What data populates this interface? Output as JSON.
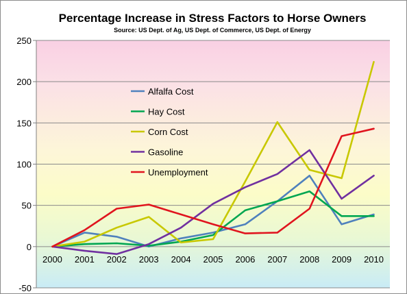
{
  "chart_data": {
    "type": "line",
    "title": "Percentage Increase in Stress Factors to Horse Owners",
    "subtitle": "Source: US Dept. of Ag, US Dept. of Commerce, US Dept. of Energy",
    "xlabel": "",
    "ylabel": "",
    "categories": [
      "2000",
      "2001",
      "2002",
      "2003",
      "2004",
      "2005",
      "2006",
      "2007",
      "2008",
      "2009",
      "2010"
    ],
    "ylim": [
      -50,
      250
    ],
    "yticks": [
      -50,
      0,
      50,
      100,
      150,
      200,
      250
    ],
    "grid": true,
    "legend_position": "top-left inside plot",
    "series": [
      {
        "name": "Alfalfa Cost",
        "color": "#4f81bd",
        "values": [
          0,
          17,
          12,
          0,
          10,
          17,
          27,
          55,
          86,
          27,
          39
        ]
      },
      {
        "name": "Hay Cost",
        "color": "#00a651",
        "values": [
          0,
          3,
          4,
          1,
          6,
          14,
          44,
          55,
          67,
          37,
          37
        ]
      },
      {
        "name": "Corn Cost",
        "color": "#c8c800",
        "values": [
          0,
          6,
          23,
          36,
          5,
          9,
          79,
          151,
          93,
          83,
          224
        ]
      },
      {
        "name": "Gasoline",
        "color": "#7030a0",
        "values": [
          0,
          -5,
          -9,
          3,
          23,
          52,
          72,
          88,
          117,
          58,
          86
        ]
      },
      {
        "name": "Unemployment",
        "color": "#e0141e",
        "values": [
          0,
          20,
          46,
          51,
          39,
          27,
          16,
          17,
          46,
          134,
          143
        ]
      }
    ]
  }
}
